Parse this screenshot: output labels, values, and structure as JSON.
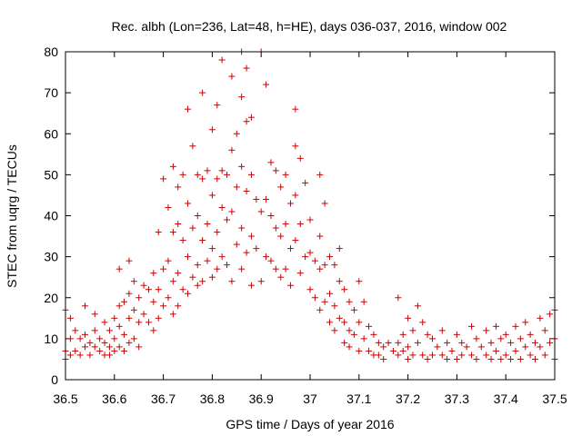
{
  "chart_data": {
    "type": "scatter",
    "title": "Rec. albh (Lon=236, Lat=48, h=HE), days 036-037, 2016, window 002",
    "xlabel": "GPS time / Days of year 2016",
    "ylabel": "STEC from uqrg / TECUs",
    "xlim": [
      36.5,
      37.5
    ],
    "ylim": [
      0,
      80
    ],
    "xticks": [
      "36.5",
      "36.6",
      "36.7",
      "36.8",
      "36.9",
      "37",
      "37.1",
      "37.2",
      "37.3",
      "37.4",
      "37.5"
    ],
    "yticks": [
      "0",
      "10",
      "20",
      "30",
      "40",
      "50",
      "60",
      "70",
      "80"
    ],
    "grid": false,
    "legend": "none",
    "marker": "+",
    "color": "#cc0000",
    "points": [
      [
        36.5,
        17
      ],
      [
        36.5,
        7
      ],
      [
        36.5,
        5
      ],
      [
        36.51,
        15
      ],
      [
        36.51,
        10
      ],
      [
        36.51,
        6
      ],
      [
        36.52,
        12
      ],
      [
        36.52,
        7
      ],
      [
        36.53,
        10
      ],
      [
        36.53,
        6
      ],
      [
        36.54,
        18
      ],
      [
        36.54,
        11
      ],
      [
        36.54,
        8
      ],
      [
        36.55,
        9
      ],
      [
        36.55,
        6
      ],
      [
        36.56,
        16
      ],
      [
        36.56,
        12
      ],
      [
        36.56,
        8
      ],
      [
        36.57,
        10
      ],
      [
        36.57,
        7
      ],
      [
        36.58,
        14
      ],
      [
        36.58,
        9
      ],
      [
        36.58,
        6
      ],
      [
        36.59,
        12
      ],
      [
        36.59,
        8
      ],
      [
        36.59,
        6
      ],
      [
        36.6,
        15
      ],
      [
        36.6,
        10
      ],
      [
        36.6,
        7
      ],
      [
        36.61,
        27
      ],
      [
        36.61,
        18
      ],
      [
        36.61,
        13
      ],
      [
        36.61,
        8
      ],
      [
        36.62,
        19
      ],
      [
        36.62,
        11
      ],
      [
        36.62,
        7
      ],
      [
        36.63,
        29
      ],
      [
        36.63,
        21
      ],
      [
        36.63,
        15
      ],
      [
        36.63,
        9
      ],
      [
        36.64,
        24
      ],
      [
        36.64,
        17
      ],
      [
        36.64,
        10
      ],
      [
        36.65,
        20
      ],
      [
        36.65,
        14
      ],
      [
        36.65,
        8
      ],
      [
        36.66,
        23
      ],
      [
        36.66,
        16
      ],
      [
        36.67,
        22
      ],
      [
        36.67,
        14
      ],
      [
        36.68,
        26
      ],
      [
        36.68,
        19
      ],
      [
        36.68,
        12
      ],
      [
        36.69,
        36
      ],
      [
        36.69,
        22
      ],
      [
        36.69,
        15
      ],
      [
        36.7,
        49
      ],
      [
        36.7,
        27
      ],
      [
        36.7,
        18
      ],
      [
        36.71,
        42
      ],
      [
        36.71,
        29
      ],
      [
        36.71,
        20
      ],
      [
        36.72,
        52
      ],
      [
        36.72,
        36
      ],
      [
        36.72,
        24
      ],
      [
        36.72,
        16
      ],
      [
        36.73,
        47
      ],
      [
        36.73,
        38
      ],
      [
        36.73,
        26
      ],
      [
        36.73,
        18
      ],
      [
        36.74,
        50
      ],
      [
        36.74,
        34
      ],
      [
        36.74,
        22
      ],
      [
        36.75,
        66
      ],
      [
        36.75,
        43
      ],
      [
        36.75,
        30
      ],
      [
        36.75,
        21
      ],
      [
        36.76,
        57
      ],
      [
        36.76,
        37
      ],
      [
        36.76,
        25
      ],
      [
        36.77,
        50
      ],
      [
        36.77,
        40
      ],
      [
        36.77,
        28
      ],
      [
        36.77,
        23
      ],
      [
        36.78,
        70
      ],
      [
        36.78,
        49
      ],
      [
        36.78,
        34
      ],
      [
        36.78,
        24
      ],
      [
        36.79,
        51
      ],
      [
        36.79,
        38
      ],
      [
        36.79,
        29
      ],
      [
        36.8,
        61
      ],
      [
        36.8,
        45
      ],
      [
        36.8,
        32
      ],
      [
        36.8,
        25
      ],
      [
        36.81,
        67
      ],
      [
        36.81,
        49
      ],
      [
        36.81,
        36
      ],
      [
        36.81,
        27
      ],
      [
        36.82,
        78
      ],
      [
        36.82,
        51
      ],
      [
        36.82,
        42
      ],
      [
        36.82,
        30
      ],
      [
        36.83,
        50
      ],
      [
        36.83,
        39
      ],
      [
        36.83,
        28
      ],
      [
        36.84,
        74
      ],
      [
        36.84,
        56
      ],
      [
        36.84,
        41
      ],
      [
        36.84,
        24
      ],
      [
        36.85,
        60
      ],
      [
        36.85,
        47
      ],
      [
        36.85,
        33
      ],
      [
        36.86,
        80
      ],
      [
        36.86,
        69
      ],
      [
        36.86,
        52
      ],
      [
        36.86,
        37
      ],
      [
        36.86,
        27
      ],
      [
        36.87,
        76
      ],
      [
        36.87,
        63
      ],
      [
        36.87,
        46
      ],
      [
        36.87,
        31
      ],
      [
        36.88,
        64
      ],
      [
        36.88,
        50
      ],
      [
        36.88,
        35
      ],
      [
        36.88,
        23
      ],
      [
        36.89,
        44
      ],
      [
        36.89,
        32
      ],
      [
        36.9,
        80
      ],
      [
        36.9,
        41
      ],
      [
        36.9,
        24
      ],
      [
        36.91,
        72
      ],
      [
        36.91,
        44
      ],
      [
        36.91,
        30
      ],
      [
        36.92,
        53
      ],
      [
        36.92,
        40
      ],
      [
        36.92,
        29
      ],
      [
        36.93,
        51
      ],
      [
        36.93,
        37
      ],
      [
        36.93,
        27
      ],
      [
        36.94,
        47
      ],
      [
        36.94,
        35
      ],
      [
        36.94,
        25
      ],
      [
        36.95,
        50
      ],
      [
        36.95,
        38
      ],
      [
        36.95,
        27
      ],
      [
        36.96,
        43
      ],
      [
        36.96,
        32
      ],
      [
        36.96,
        23
      ],
      [
        36.97,
        66
      ],
      [
        36.97,
        57
      ],
      [
        36.97,
        45
      ],
      [
        36.97,
        34
      ],
      [
        36.98,
        54
      ],
      [
        36.98,
        38
      ],
      [
        36.98,
        26
      ],
      [
        36.99,
        48
      ],
      [
        36.99,
        30
      ],
      [
        37.0,
        39
      ],
      [
        37.0,
        31
      ],
      [
        37.0,
        22
      ],
      [
        37.01,
        29
      ],
      [
        37.01,
        20
      ],
      [
        37.02,
        50
      ],
      [
        37.02,
        35
      ],
      [
        37.02,
        27
      ],
      [
        37.02,
        17
      ],
      [
        37.03,
        43
      ],
      [
        37.03,
        28
      ],
      [
        37.03,
        19
      ],
      [
        37.04,
        30
      ],
      [
        37.04,
        21
      ],
      [
        37.04,
        14
      ],
      [
        37.05,
        28
      ],
      [
        37.05,
        18
      ],
      [
        37.05,
        12
      ],
      [
        37.06,
        32
      ],
      [
        37.06,
        24
      ],
      [
        37.06,
        15
      ],
      [
        37.07,
        22
      ],
      [
        37.07,
        14
      ],
      [
        37.07,
        9
      ],
      [
        37.08,
        19
      ],
      [
        37.08,
        12
      ],
      [
        37.08,
        8
      ],
      [
        37.09,
        17
      ],
      [
        37.09,
        11
      ],
      [
        37.1,
        24
      ],
      [
        37.1,
        14
      ],
      [
        37.1,
        7
      ],
      [
        37.11,
        19
      ],
      [
        37.11,
        10
      ],
      [
        37.12,
        13
      ],
      [
        37.12,
        7
      ],
      [
        37.13,
        11
      ],
      [
        37.13,
        6
      ],
      [
        37.14,
        9
      ],
      [
        37.14,
        6
      ],
      [
        37.15,
        8
      ],
      [
        37.15,
        5
      ],
      [
        37.16,
        9
      ],
      [
        37.17,
        7
      ],
      [
        37.18,
        20
      ],
      [
        37.18,
        9
      ],
      [
        37.18,
        6
      ],
      [
        37.19,
        11
      ],
      [
        37.19,
        7
      ],
      [
        37.2,
        15
      ],
      [
        37.2,
        8
      ],
      [
        37.2,
        5
      ],
      [
        37.21,
        12
      ],
      [
        37.21,
        6
      ],
      [
        37.22,
        18
      ],
      [
        37.22,
        9
      ],
      [
        37.23,
        14
      ],
      [
        37.23,
        6
      ],
      [
        37.24,
        11
      ],
      [
        37.24,
        5
      ],
      [
        37.25,
        10
      ],
      [
        37.25,
        6
      ],
      [
        37.26,
        8
      ],
      [
        37.27,
        12
      ],
      [
        37.27,
        6
      ],
      [
        37.28,
        9
      ],
      [
        37.28,
        5
      ],
      [
        37.29,
        7
      ],
      [
        37.3,
        11
      ],
      [
        37.3,
        5
      ],
      [
        37.31,
        9
      ],
      [
        37.31,
        6
      ],
      [
        37.32,
        8
      ],
      [
        37.33,
        13
      ],
      [
        37.33,
        6
      ],
      [
        37.34,
        10
      ],
      [
        37.34,
        5
      ],
      [
        37.35,
        8
      ],
      [
        37.36,
        12
      ],
      [
        37.36,
        6
      ],
      [
        37.37,
        9
      ],
      [
        37.37,
        5
      ],
      [
        37.38,
        13
      ],
      [
        37.38,
        7
      ],
      [
        37.39,
        10
      ],
      [
        37.39,
        5
      ],
      [
        37.4,
        11
      ],
      [
        37.4,
        6
      ],
      [
        37.41,
        9
      ],
      [
        37.41,
        5
      ],
      [
        37.42,
        13
      ],
      [
        37.42,
        7
      ],
      [
        37.43,
        10
      ],
      [
        37.43,
        5
      ],
      [
        37.44,
        14
      ],
      [
        37.44,
        8
      ],
      [
        37.45,
        11
      ],
      [
        37.45,
        6
      ],
      [
        37.46,
        9
      ],
      [
        37.46,
        5
      ],
      [
        37.47,
        15
      ],
      [
        37.47,
        8
      ],
      [
        37.48,
        12
      ],
      [
        37.48,
        6
      ],
      [
        37.49,
        16
      ],
      [
        37.49,
        9
      ],
      [
        37.5,
        17
      ],
      [
        37.5,
        10
      ],
      [
        37.5,
        5
      ]
    ]
  }
}
